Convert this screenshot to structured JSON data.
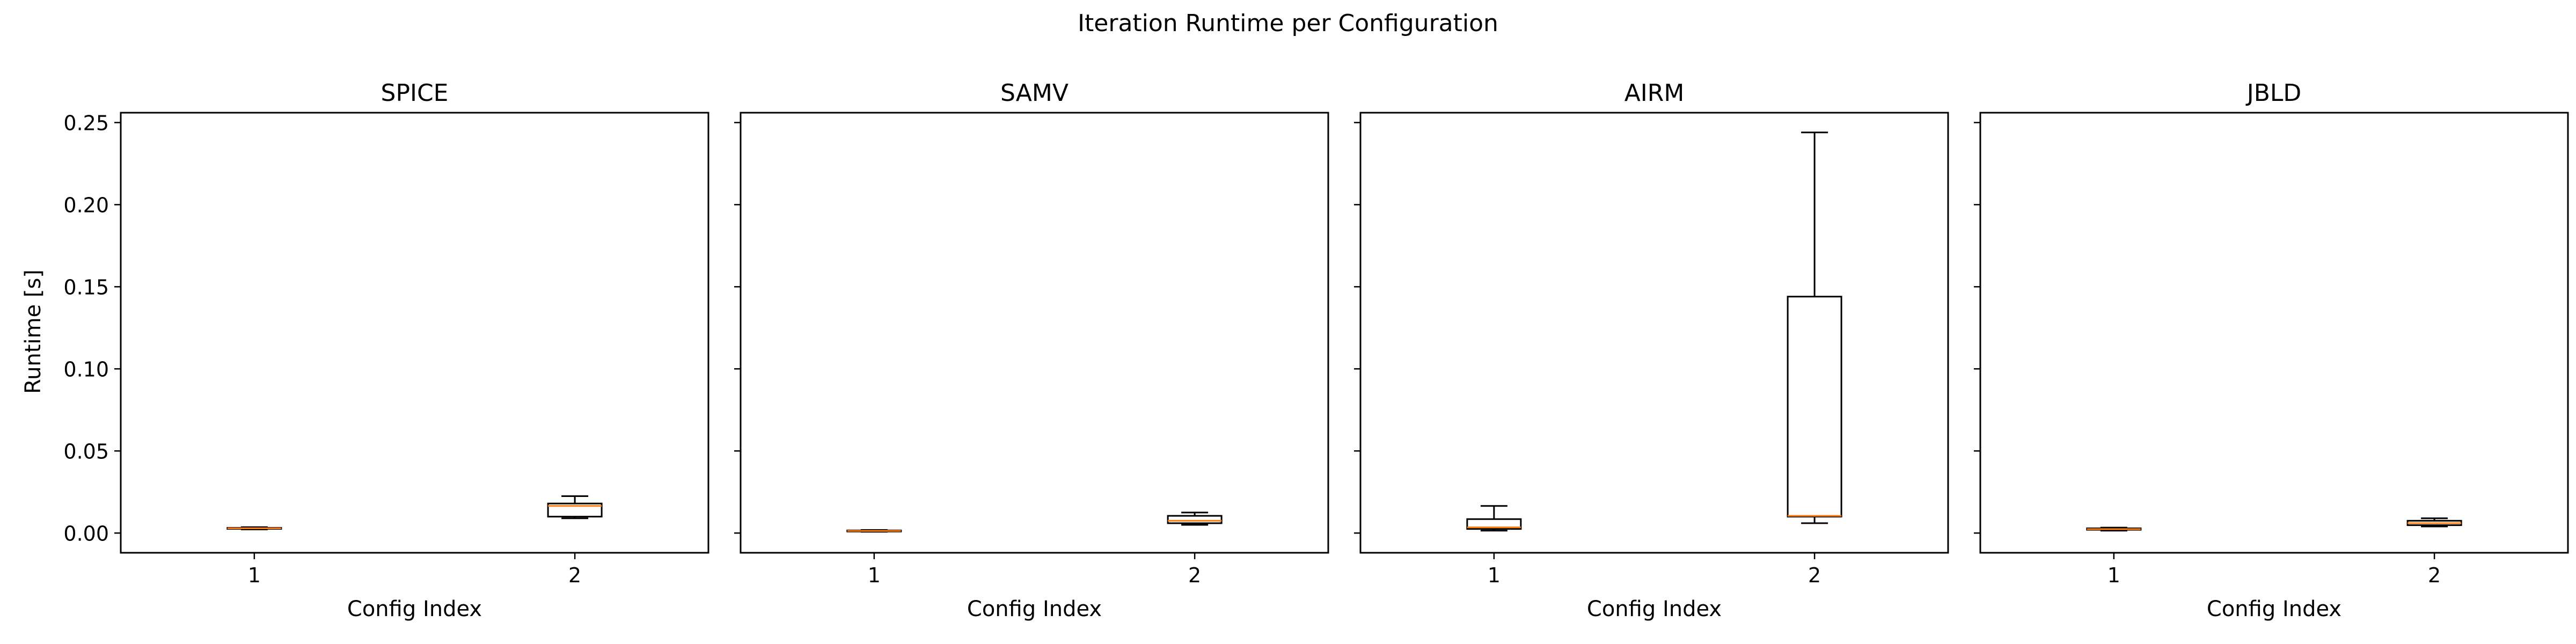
{
  "chart_data": {
    "type": "box",
    "title": "Iteration Runtime per Configuration",
    "ylabel": "Runtime [s]",
    "xlabel": "Config Index",
    "ylim": [
      -0.012,
      0.256
    ],
    "yticks": [
      0.0,
      0.05,
      0.1,
      0.15,
      0.2,
      0.25
    ],
    "ytick_labels": [
      "0.00",
      "0.05",
      "0.10",
      "0.15",
      "0.20",
      "0.25"
    ],
    "categories": [
      "1",
      "2"
    ],
    "sharey": true,
    "colors": {
      "box": "#000000",
      "median": "#ff7f0e"
    },
    "panels": [
      {
        "title": "SPICE",
        "boxes": [
          {
            "config": "1",
            "whislo": 0.0022,
            "q1": 0.0026,
            "med": 0.0029,
            "q3": 0.0032,
            "whishi": 0.0036
          },
          {
            "config": "2",
            "whislo": 0.009,
            "q1": 0.01,
            "med": 0.0165,
            "q3": 0.018,
            "whishi": 0.0225
          }
        ]
      },
      {
        "title": "SAMV",
        "boxes": [
          {
            "config": "1",
            "whislo": 0.0008,
            "q1": 0.0011,
            "med": 0.0013,
            "q3": 0.0016,
            "whishi": 0.0019
          },
          {
            "config": "2",
            "whislo": 0.005,
            "q1": 0.006,
            "med": 0.0075,
            "q3": 0.0105,
            "whishi": 0.0125
          }
        ]
      },
      {
        "title": "AIRM",
        "boxes": [
          {
            "config": "1",
            "whislo": 0.0015,
            "q1": 0.0025,
            "med": 0.0035,
            "q3": 0.0085,
            "whishi": 0.0165
          },
          {
            "config": "2",
            "whislo": 0.006,
            "q1": 0.01,
            "med": 0.0105,
            "q3": 0.144,
            "whishi": 0.244
          }
        ]
      },
      {
        "title": "JBLD",
        "boxes": [
          {
            "config": "1",
            "whislo": 0.0015,
            "q1": 0.002,
            "med": 0.0024,
            "q3": 0.0029,
            "whishi": 0.0033
          },
          {
            "config": "2",
            "whislo": 0.004,
            "q1": 0.0048,
            "med": 0.006,
            "q3": 0.0075,
            "whishi": 0.009
          }
        ]
      }
    ]
  }
}
